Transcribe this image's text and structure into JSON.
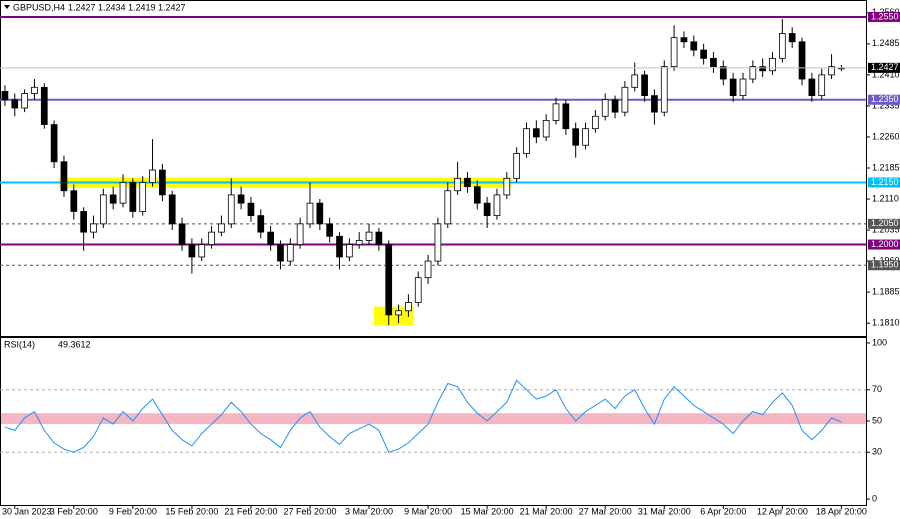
{
  "chart_data": {
    "type": "candlestick",
    "symbol": "GBPUSD,H4",
    "x": [
      null,
      "30 Jan 2023",
      null,
      null,
      null,
      null,
      null,
      "3 Feb 20:00",
      null,
      null,
      null,
      null,
      null,
      "9 Feb 20:00",
      null,
      null,
      null,
      null,
      null,
      "15 Feb 20:00",
      null,
      null,
      null,
      null,
      null,
      "21 Feb 20:00",
      null,
      null,
      null,
      null,
      null,
      "27 Feb 20:00",
      null,
      null,
      null,
      null,
      null,
      "3 Mar 20:00",
      null,
      null,
      null,
      null,
      null,
      "9 Mar 20:00",
      null,
      null,
      null,
      null,
      null,
      "15 Mar 20:00",
      null,
      null,
      null,
      null,
      null,
      "21 Mar 20:00",
      null,
      null,
      null,
      null,
      null,
      "27 Mar 20:00",
      null,
      null,
      null,
      null,
      null,
      "31 Mar 20:00",
      null,
      null,
      null,
      null,
      null,
      "6 Apr 20:00",
      null,
      null,
      null,
      null,
      null,
      "12 Apr 20:00",
      null,
      null,
      null,
      null,
      null,
      "18 Apr 20:00"
    ],
    "open": [
      1.237,
      1.235,
      1.233,
      1.2365,
      1.238,
      1.229,
      1.22,
      1.213,
      1.208,
      1.203,
      1.205,
      1.212,
      1.21,
      1.215,
      1.208,
      1.215,
      1.218,
      1.212,
      1.205,
      1.2,
      1.197,
      1.2,
      1.203,
      1.205,
      1.212,
      1.21,
      1.207,
      1.203,
      1.2,
      1.196,
      1.2,
      1.205,
      1.21,
      1.205,
      1.202,
      1.197,
      1.2,
      1.201,
      1.203,
      1.2,
      1.183,
      1.184,
      1.186,
      1.192,
      1.196,
      1.205,
      1.213,
      1.216,
      1.214,
      1.21,
      1.207,
      1.212,
      1.216,
      1.222,
      1.228,
      1.226,
      1.23,
      1.234,
      1.228,
      1.224,
      1.228,
      1.231,
      1.235,
      1.232,
      1.238,
      1.241,
      1.236,
      1.232,
      1.243,
      1.25,
      1.249,
      1.247,
      1.245,
      1.243,
      1.24,
      1.236,
      1.24,
      1.243,
      1.242,
      1.245,
      1.251,
      1.249,
      1.24,
      1.236,
      1.241,
      1.2427
    ],
    "high": [
      1.2385,
      1.2365,
      1.2375,
      1.24,
      1.239,
      1.23,
      1.2215,
      1.2145,
      1.209,
      1.207,
      1.2135,
      1.214,
      1.217,
      1.216,
      1.2165,
      1.2255,
      1.2195,
      1.213,
      1.2065,
      1.2015,
      1.2015,
      1.2045,
      1.207,
      1.216,
      1.214,
      1.2115,
      1.2085,
      1.2045,
      1.201,
      1.2015,
      1.2065,
      1.215,
      1.211,
      1.2065,
      1.203,
      1.2015,
      1.203,
      1.205,
      1.204,
      1.201,
      1.1855,
      1.188,
      1.1935,
      1.1975,
      1.2065,
      1.215,
      1.22,
      1.2175,
      1.2155,
      1.2115,
      1.2135,
      1.2175,
      1.2235,
      1.2295,
      1.23,
      1.2315,
      1.2355,
      1.235,
      1.2295,
      1.2295,
      1.2325,
      1.2365,
      1.236,
      1.2395,
      1.244,
      1.242,
      1.2375,
      1.2445,
      1.253,
      1.2515,
      1.2505,
      1.2485,
      1.2465,
      1.2445,
      1.2415,
      1.2415,
      1.2445,
      1.245,
      1.2465,
      1.2545,
      1.2525,
      1.25,
      1.2415,
      1.2425,
      1.246,
      1.2434
    ],
    "low": [
      1.2335,
      1.231,
      1.232,
      1.235,
      1.228,
      1.2185,
      1.2115,
      1.206,
      1.1985,
      1.2015,
      1.204,
      1.2085,
      1.209,
      1.2065,
      1.207,
      1.214,
      1.2105,
      1.2035,
      1.1985,
      1.193,
      1.196,
      1.199,
      1.202,
      1.204,
      1.2085,
      1.2055,
      1.2015,
      1.1985,
      1.194,
      1.195,
      1.199,
      1.204,
      1.2035,
      1.2005,
      1.194,
      1.196,
      1.199,
      1.2,
      1.1985,
      1.1805,
      1.181,
      1.1825,
      1.185,
      1.1905,
      1.195,
      1.204,
      1.212,
      1.2125,
      1.2085,
      1.204,
      1.206,
      1.211,
      1.215,
      1.221,
      1.2245,
      1.225,
      1.229,
      1.2265,
      1.221,
      1.223,
      1.227,
      1.23,
      1.2305,
      1.231,
      1.237,
      1.2345,
      1.229,
      1.231,
      1.242,
      1.2475,
      1.2455,
      1.2435,
      1.2415,
      1.2385,
      1.2345,
      1.235,
      1.239,
      1.2405,
      1.241,
      1.244,
      1.2475,
      1.2385,
      1.2345,
      1.235,
      1.24,
      1.2419
    ],
    "close": [
      1.235,
      1.233,
      1.2365,
      1.238,
      1.229,
      1.22,
      1.213,
      1.208,
      1.203,
      1.205,
      1.212,
      1.21,
      1.215,
      1.208,
      1.215,
      1.218,
      1.212,
      1.205,
      1.2,
      1.197,
      1.2,
      1.203,
      1.205,
      1.212,
      1.21,
      1.207,
      1.203,
      1.2,
      1.196,
      1.2,
      1.205,
      1.21,
      1.205,
      1.202,
      1.197,
      1.2,
      1.201,
      1.203,
      1.2,
      1.183,
      1.184,
      1.186,
      1.192,
      1.196,
      1.205,
      1.213,
      1.216,
      1.214,
      1.21,
      1.207,
      1.212,
      1.216,
      1.222,
      1.228,
      1.226,
      1.23,
      1.234,
      1.228,
      1.224,
      1.228,
      1.231,
      1.235,
      1.232,
      1.238,
      1.241,
      1.236,
      1.232,
      1.243,
      1.25,
      1.249,
      1.247,
      1.245,
      1.243,
      1.24,
      1.236,
      1.24,
      1.243,
      1.242,
      1.245,
      1.251,
      1.249,
      1.24,
      1.236,
      1.241,
      1.243,
      1.2427
    ],
    "ylim": [
      1.1779,
      1.2591
    ],
    "yticks": [
      {
        "value": 1.256,
        "label": "1.2560"
      },
      {
        "value": 1.2485,
        "label": "1.2485"
      },
      {
        "value": 1.241,
        "label": "1.2410"
      },
      {
        "value": 1.2335,
        "label": "1.2335"
      },
      {
        "value": 1.226,
        "label": "1.2260"
      },
      {
        "value": 1.2185,
        "label": "1.2185"
      },
      {
        "value": 1.211,
        "label": "1.2110"
      },
      {
        "value": 1.2035,
        "label": "1.2035"
      },
      {
        "value": 1.196,
        "label": "1.1960"
      },
      {
        "value": 1.1885,
        "label": "1.1885"
      },
      {
        "value": 1.181,
        "label": "1.1810"
      }
    ],
    "levels": [
      {
        "value": 1.255,
        "label": "1.2550",
        "color": "#800080",
        "style": "solid"
      },
      {
        "value": 1.235,
        "label": "1.2350",
        "color": "#6a5acd",
        "style": "solid"
      },
      {
        "value": 1.215,
        "label": "1.2150",
        "color": "#00bfff",
        "style": "solid"
      },
      {
        "value": 1.205,
        "label": "1.2050",
        "color": "#555555",
        "style": "dashed"
      },
      {
        "value": 1.2,
        "label": "1.2000",
        "color": "#800080",
        "style": "solid"
      },
      {
        "value": 1.195,
        "label": "1.1950",
        "color": "#555555",
        "style": "dashed"
      }
    ],
    "zones": [
      {
        "y": [
          1.2138,
          1.2162
        ],
        "x": [
          6,
          51
        ],
        "color": "#ffff00"
      },
      {
        "y": [
          1.1805,
          1.185
        ],
        "x": [
          38,
          41
        ],
        "color": "#ffff00"
      }
    ],
    "rsi": {
      "name": "RSI(14)",
      "color": "#1e90ff",
      "values": [
        46,
        44,
        52,
        56,
        44,
        36,
        32,
        30,
        33,
        40,
        52,
        48,
        56,
        50,
        58,
        64,
        54,
        44,
        38,
        34,
        42,
        48,
        54,
        62,
        56,
        48,
        42,
        38,
        33,
        44,
        52,
        56,
        46,
        40,
        35,
        42,
        45,
        48,
        44,
        30,
        32,
        36,
        42,
        48,
        62,
        74,
        72,
        62,
        55,
        50,
        56,
        62,
        76,
        70,
        64,
        66,
        70,
        58,
        50,
        56,
        60,
        64,
        58,
        66,
        70,
        58,
        48,
        64,
        72,
        66,
        60,
        56,
        52,
        48,
        42,
        50,
        56,
        54,
        62,
        68,
        60,
        44,
        38,
        44,
        52,
        49.3612
      ],
      "ylim": [
        -3.8,
        103.8
      ],
      "yticks": [
        100,
        70,
        50,
        30,
        0
      ],
      "levels": [
        70,
        30
      ],
      "band": [
        48,
        55
      ],
      "band_color": "#f4b6c2"
    }
  }
}
